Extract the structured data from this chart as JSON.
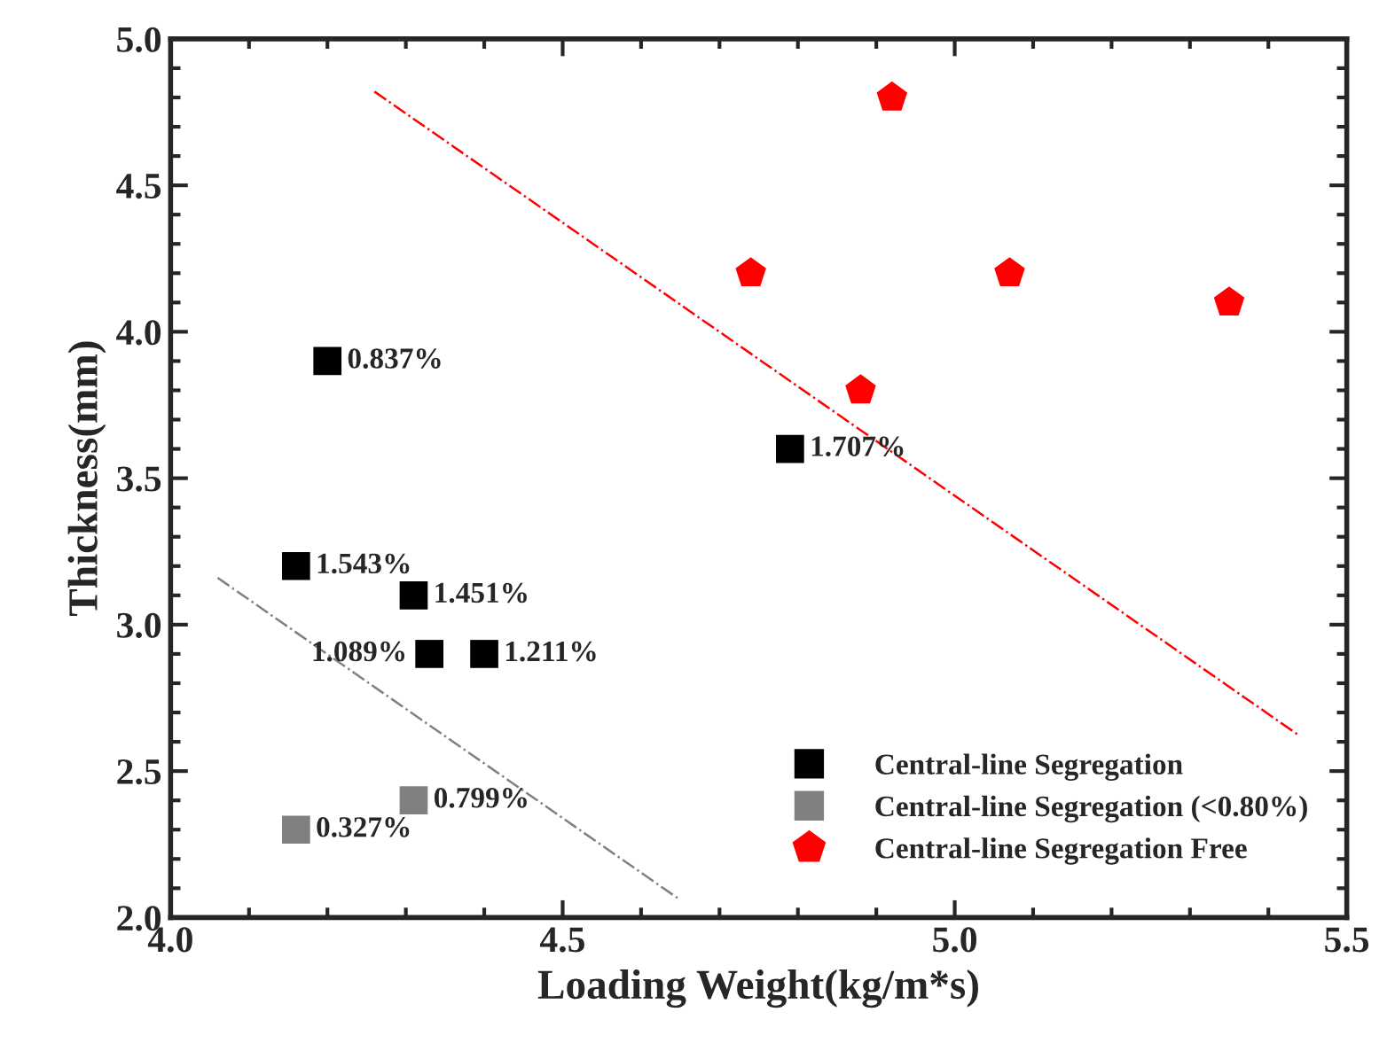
{
  "chart_data": {
    "type": "scatter",
    "xlabel": "Loading Weight(kg/m*s)",
    "ylabel": "Thickness(mm)",
    "xlim": [
      4.0,
      5.5
    ],
    "xticks": [
      {
        "value": 4.0,
        "label": "4.0"
      },
      4.5,
      {
        "value": 5.0,
        "label": "5.0"
      },
      5.5
    ],
    "ylim": [
      2.0,
      5.0
    ],
    "yticks": [
      {
        "value": 2.0,
        "label": "2.0"
      },
      2.5,
      {
        "value": 3.0,
        "label": "3.0"
      },
      3.5,
      {
        "value": 4.0,
        "label": "4.0"
      },
      4.5,
      {
        "value": 5.0,
        "label": "5.0"
      }
    ],
    "grid": false,
    "legend": "bottom right",
    "series": [
      {
        "name": "Central-line Segregation",
        "color": "#000000",
        "marker": "square",
        "x": [
          4.2,
          4.16,
          4.31,
          4.33,
          4.4,
          4.79
        ],
        "values": [
          3.9,
          3.2,
          3.1,
          2.9,
          2.9,
          3.6
        ]
      },
      {
        "name": "Central-line Segregation (<0.80%)",
        "color": "#808080",
        "marker": "square",
        "x": [
          4.16,
          4.31
        ],
        "values": [
          2.3,
          2.4
        ]
      },
      {
        "name": "Central-line Segregation Free",
        "color": "#ff0000",
        "x": [
          4.74,
          4.92,
          4.88,
          5.07,
          5.35
        ],
        "values": [
          4.2,
          4.8,
          3.8,
          4.2,
          4.1
        ]
      },
      {
        "type": "line",
        "color": "#ff0000",
        "line_style": "dashdot",
        "x": [
          4.26,
          5.44
        ],
        "values": [
          4.82,
          2.62
        ]
      },
      {
        "type": "line",
        "color": "#808080",
        "line_style": "dashdot",
        "x": [
          4.06,
          4.65
        ],
        "values": [
          3.16,
          2.06
        ]
      }
    ],
    "annotations": [
      {
        "text": "0.837%",
        "x": 4.2,
        "y": 3.9
      },
      {
        "text": "1.543%",
        "x": 4.16,
        "y": 3.2
      },
      {
        "text": "1.451%",
        "x": 4.31,
        "y": 3.1
      },
      {
        "text": "1.089%",
        "x": 4.33,
        "y": 2.9
      },
      {
        "text": "1.211%",
        "x": 4.4,
        "y": 2.9
      },
      {
        "text": "1.707%",
        "x": 4.79,
        "y": 3.6
      },
      {
        "text": "0.327%",
        "x": 4.16,
        "y": 2.3
      },
      {
        "text": "0.799%",
        "x": 4.31,
        "y": 2.4
      }
    ]
  }
}
